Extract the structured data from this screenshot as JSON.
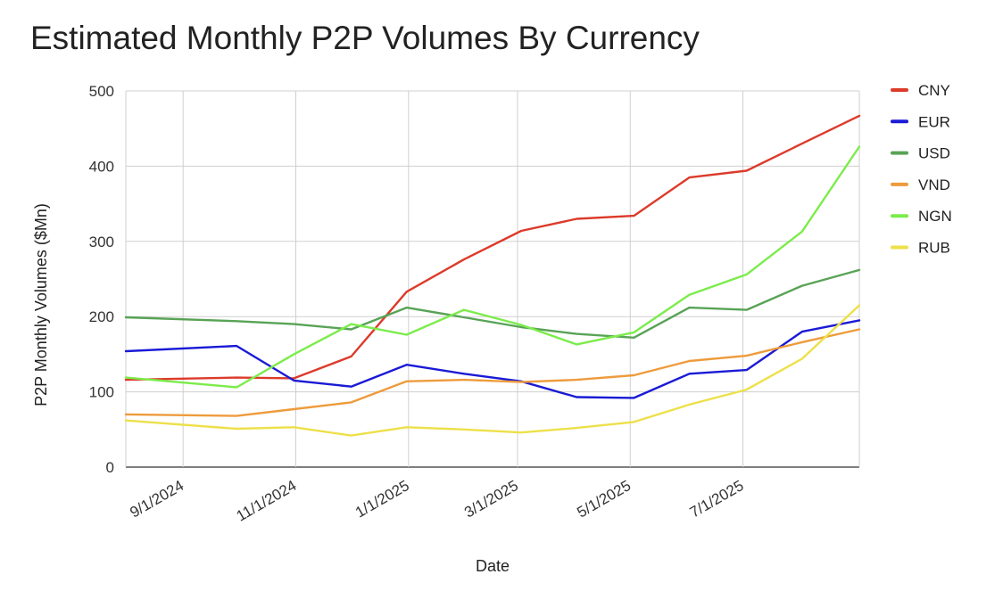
{
  "chart_data": {
    "type": "line",
    "title": "Estimated Monthly P2P Volumes By Currency",
    "xlabel": "Date",
    "ylabel": "P2P Monthly Volumes ($Mn)",
    "ylim": [
      0,
      500
    ],
    "yticks": [
      0,
      100,
      200,
      300,
      400,
      500
    ],
    "xticks": [
      "9/1/2024",
      "11/1/2024",
      "1/1/2025",
      "3/1/2025",
      "5/1/2025",
      "7/1/2025"
    ],
    "x": [
      "8/1/2024",
      "9/30/2024",
      "10/31/2024",
      "12/1/2024",
      "12/31/2024",
      "1/31/2025",
      "3/3/2025",
      "4/2/2025",
      "5/3/2025",
      "6/2/2025",
      "7/3/2025",
      "8/2/2025",
      "9/2/2025"
    ],
    "grid": true,
    "legend_position": "right",
    "series": [
      {
        "name": "CNY",
        "color": "#dc3b2b",
        "values": [
          116,
          119,
          118,
          147,
          233,
          276,
          314,
          330,
          334,
          385,
          394,
          430,
          467
        ]
      },
      {
        "name": "EUR",
        "color": "#1a1ad6",
        "values": [
          154,
          161,
          115,
          107,
          136,
          124,
          114,
          93,
          92,
          124,
          129,
          180,
          195
        ]
      },
      {
        "name": "USD",
        "color": "#58a356",
        "values": [
          199,
          194,
          190,
          183,
          212,
          199,
          186,
          177,
          172,
          212,
          209,
          241,
          262
        ]
      },
      {
        "name": "VND",
        "color": "#ee9b3c",
        "values": [
          70,
          68,
          77,
          86,
          114,
          116,
          113,
          116,
          122,
          141,
          148,
          166,
          183
        ]
      },
      {
        "name": "NGN",
        "color": "#7bec4a",
        "values": [
          119,
          106,
          150,
          190,
          176,
          209,
          189,
          163,
          179,
          229,
          256,
          313,
          426
        ]
      },
      {
        "name": "RUB",
        "color": "#ede04a",
        "values": [
          62,
          51,
          53,
          42,
          53,
          50,
          46,
          52,
          60,
          83,
          103,
          144,
          215
        ]
      }
    ]
  }
}
